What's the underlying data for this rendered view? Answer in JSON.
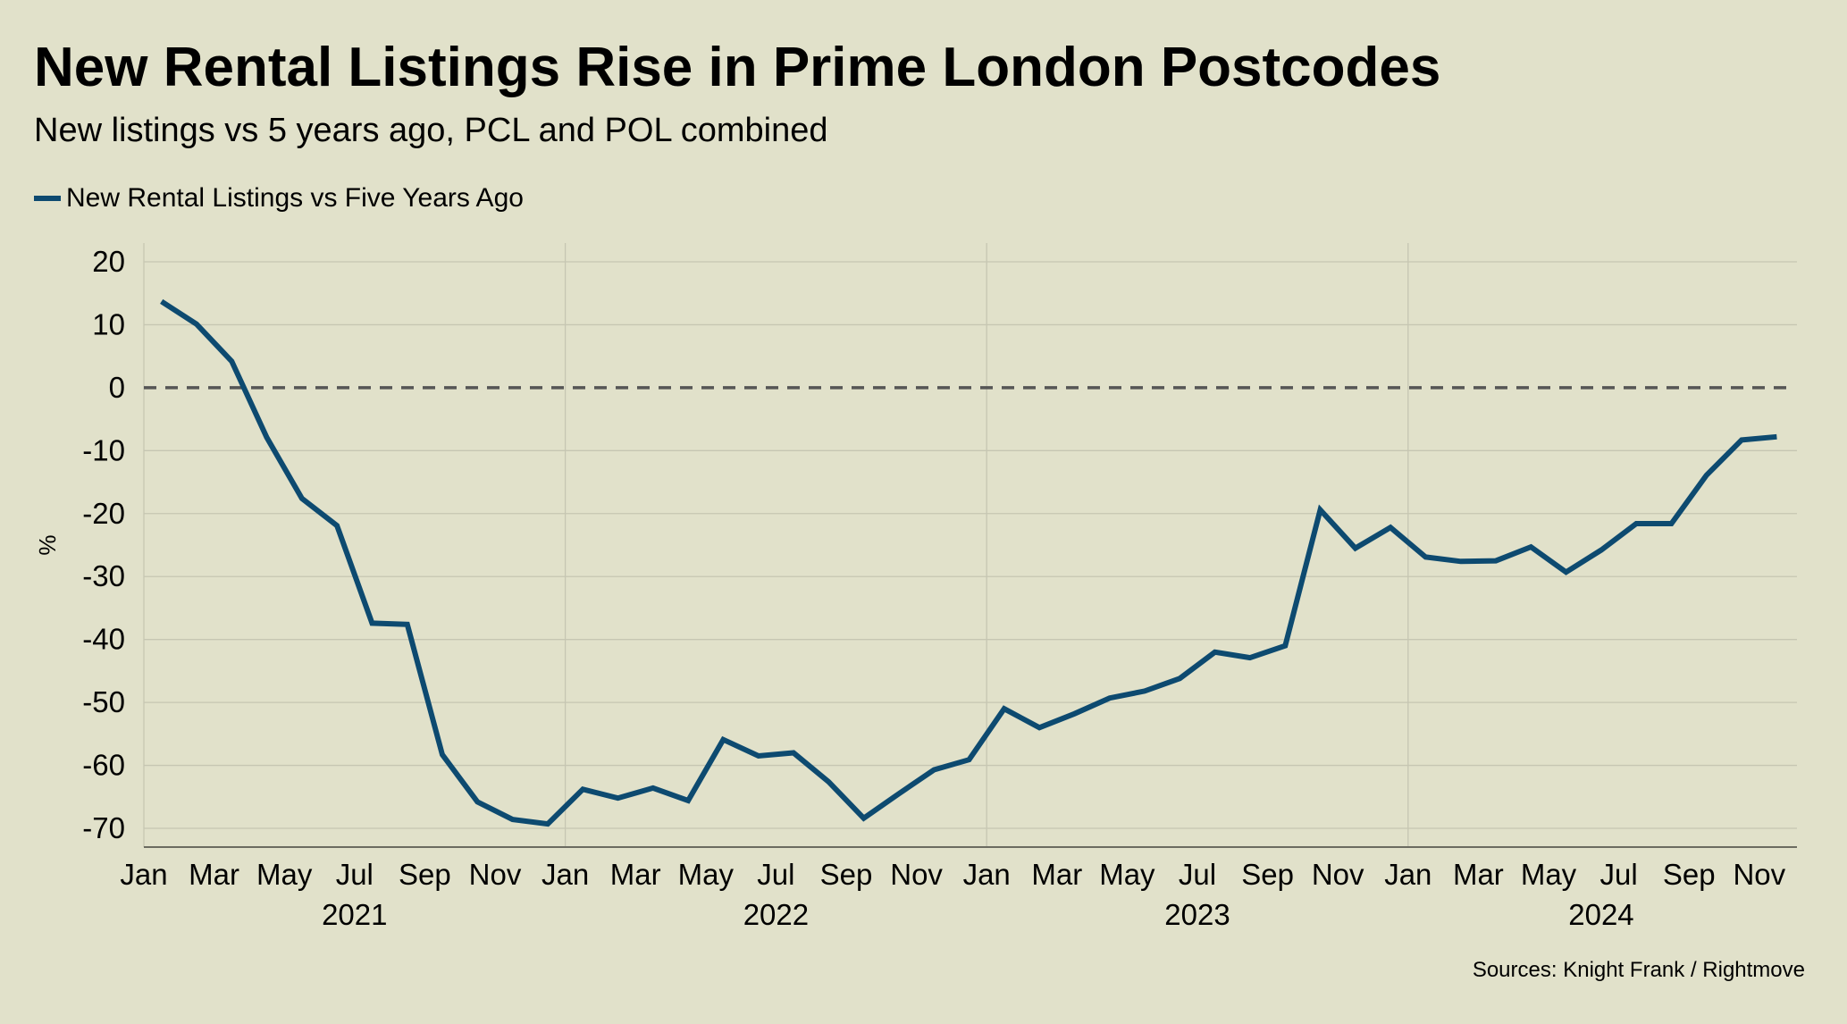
{
  "header": {
    "title": "New Rental Listings Rise in Prime London Postcodes",
    "subtitle": "New listings vs 5 years ago, PCL and POL combined"
  },
  "legend": {
    "label": "New Rental Listings vs Five Years Ago",
    "color": "#0d4a70"
  },
  "footer": {
    "source": "Sources: Knight Frank / Rightmove"
  },
  "chart_data": {
    "type": "line",
    "title": "New Rental Listings Rise in Prime London Postcodes",
    "subtitle": "New listings vs 5 years ago, PCL and POL combined",
    "xlabel": "",
    "ylabel": "%",
    "ylim": [
      -70,
      20
    ],
    "yticks": [
      20,
      10,
      0,
      -10,
      -20,
      -30,
      -40,
      -50,
      -60,
      -70
    ],
    "reference_line": {
      "y": 0,
      "style": "dashed"
    },
    "grid": true,
    "legend_position": "top-left",
    "x_month_ticks": [
      "Jan",
      "Mar",
      "May",
      "Jul",
      "Sep",
      "Nov",
      "Jan",
      "Mar",
      "May",
      "Jul",
      "Sep",
      "Nov",
      "Jan",
      "Mar",
      "May",
      "Jul",
      "Sep",
      "Nov",
      "Jan",
      "Mar",
      "May",
      "Jul",
      "Sep",
      "Nov"
    ],
    "x_year_labels": [
      "2021",
      "2022",
      "2023",
      "2024"
    ],
    "x_start": "2021-01",
    "x_end": "2024-11",
    "series": [
      {
        "name": "New Rental Listings vs Five Years Ago",
        "color": "#0d4a70",
        "values": [
          13.7,
          10.1,
          4.2,
          -7.9,
          -17.6,
          -21.9,
          -37.4,
          -37.6,
          -58.3,
          -65.8,
          -68.6,
          -69.3,
          -63.8,
          -65.2,
          -63.6,
          -65.6,
          -55.9,
          -58.5,
          -58.0,
          -62.6,
          -68.4,
          -64.5,
          -60.7,
          -59.1,
          -51.0,
          -54.0,
          -51.8,
          -49.3,
          -48.2,
          -46.2,
          -42.0,
          -42.9,
          -41.0,
          -19.4,
          -25.5,
          -22.2,
          -26.9,
          -27.6,
          -27.5,
          -25.3,
          -29.3,
          -25.8,
          -21.6,
          -21.6,
          -13.9,
          -8.3,
          -7.8
        ]
      }
    ]
  }
}
